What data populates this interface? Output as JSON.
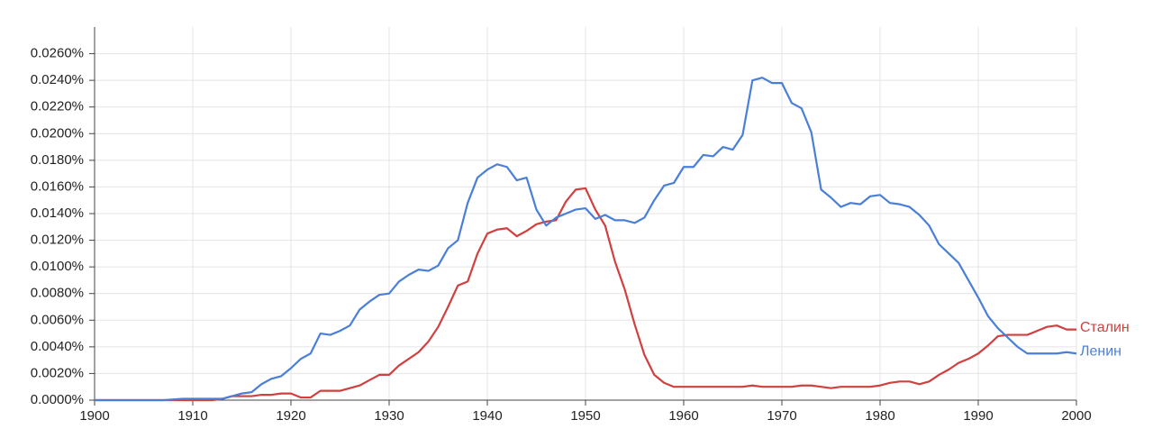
{
  "chart_data": {
    "type": "line",
    "x": [
      1900,
      1901,
      1902,
      1903,
      1904,
      1905,
      1906,
      1907,
      1908,
      1909,
      1910,
      1911,
      1912,
      1913,
      1914,
      1915,
      1916,
      1917,
      1918,
      1919,
      1920,
      1921,
      1922,
      1923,
      1924,
      1925,
      1926,
      1927,
      1928,
      1929,
      1930,
      1931,
      1932,
      1933,
      1934,
      1935,
      1936,
      1937,
      1938,
      1939,
      1940,
      1941,
      1942,
      1943,
      1944,
      1945,
      1946,
      1947,
      1948,
      1949,
      1950,
      1951,
      1952,
      1953,
      1954,
      1955,
      1956,
      1957,
      1958,
      1959,
      1960,
      1961,
      1962,
      1963,
      1964,
      1965,
      1966,
      1967,
      1968,
      1969,
      1970,
      1971,
      1972,
      1973,
      1974,
      1975,
      1976,
      1977,
      1978,
      1979,
      1980,
      1981,
      1982,
      1983,
      1984,
      1985,
      1986,
      1987,
      1988,
      1989,
      1990,
      1991,
      1992,
      1993,
      1994,
      1995,
      1996,
      1997,
      1998,
      1999,
      2000
    ],
    "series": [
      {
        "name": "Сталин",
        "color": "#d23f3f",
        "values": [
          0,
          0,
          0,
          0,
          0,
          0,
          0,
          0,
          0,
          0,
          0,
          0,
          0,
          0.0001,
          0.0003,
          0.0003,
          0.0003,
          0.0004,
          0.0004,
          0.0005,
          0.0005,
          0.0002,
          0.0002,
          0.0007,
          0.0007,
          0.0007,
          0.0009,
          0.0011,
          0.0015,
          0.0019,
          0.0019,
          0.0026,
          0.0031,
          0.0036,
          0.0044,
          0.0055,
          0.007,
          0.0086,
          0.0089,
          0.011,
          0.0125,
          0.0128,
          0.0129,
          0.0123,
          0.0127,
          0.0132,
          0.0134,
          0.0135,
          0.0149,
          0.0158,
          0.0159,
          0.0143,
          0.0131,
          0.0104,
          0.0083,
          0.0057,
          0.0034,
          0.0019,
          0.0013,
          0.001,
          0.001,
          0.001,
          0.001,
          0.001,
          0.001,
          0.001,
          0.001,
          0.0011,
          0.001,
          0.001,
          0.001,
          0.001,
          0.0011,
          0.0011,
          0.001,
          0.0009,
          0.001,
          0.001,
          0.001,
          0.001,
          0.0011,
          0.0013,
          0.0014,
          0.0014,
          0.0012,
          0.0014,
          0.0019,
          0.0023,
          0.0028,
          0.0031,
          0.0035,
          0.0041,
          0.0048,
          0.0049,
          0.0049,
          0.0049,
          0.0052,
          0.0055,
          0.0056,
          0.0053,
          0.0053
        ]
      },
      {
        "name": "Ленин",
        "color": "#4a7fd8",
        "values": [
          0,
          0,
          0,
          0,
          0,
          0,
          0,
          0,
          5e-05,
          0.0001,
          0.0001,
          0.0001,
          0.0001,
          0.0001,
          0.0003,
          0.0005,
          0.0006,
          0.0012,
          0.0016,
          0.0018,
          0.0024,
          0.0031,
          0.0035,
          0.005,
          0.0049,
          0.0052,
          0.0056,
          0.0068,
          0.0074,
          0.0079,
          0.008,
          0.0089,
          0.0094,
          0.0098,
          0.0097,
          0.0101,
          0.0114,
          0.012,
          0.0148,
          0.0167,
          0.0173,
          0.0177,
          0.0175,
          0.0165,
          0.0167,
          0.0143,
          0.0131,
          0.0137,
          0.014,
          0.0143,
          0.0144,
          0.0136,
          0.0139,
          0.0135,
          0.0135,
          0.0133,
          0.0137,
          0.015,
          0.0161,
          0.0163,
          0.0175,
          0.0175,
          0.0184,
          0.0183,
          0.019,
          0.0188,
          0.0199,
          0.024,
          0.0242,
          0.0238,
          0.0238,
          0.0223,
          0.0219,
          0.0201,
          0.0158,
          0.0152,
          0.0145,
          0.0148,
          0.0147,
          0.0153,
          0.0154,
          0.0148,
          0.0147,
          0.0145,
          0.0139,
          0.0131,
          0.0117,
          0.011,
          0.0103,
          0.009,
          0.0077,
          0.0063,
          0.0054,
          0.0047,
          0.004,
          0.0035,
          0.0035,
          0.0035,
          0.0035,
          0.0036,
          0.0035
        ]
      }
    ],
    "xlim": [
      1900,
      2000
    ],
    "xticks": [
      1900,
      1910,
      1920,
      1930,
      1940,
      1950,
      1960,
      1970,
      1980,
      1990,
      2000
    ],
    "ylim": [
      0,
      0.028
    ],
    "yticks": [
      {
        "value": 0,
        "label": "0.0000%"
      },
      {
        "value": 0.002,
        "label": "0.0020%"
      },
      {
        "value": 0.004,
        "label": "0.0040%"
      },
      {
        "value": 0.006,
        "label": "0.0060%"
      },
      {
        "value": 0.008,
        "label": "0.0080%"
      },
      {
        "value": 0.01,
        "label": "0.0100%"
      },
      {
        "value": 0.012,
        "label": "0.0120%"
      },
      {
        "value": 0.014,
        "label": "0.0140%"
      },
      {
        "value": 0.016,
        "label": "0.0160%"
      },
      {
        "value": 0.018,
        "label": "0.0180%"
      },
      {
        "value": 0.02,
        "label": "0.0200%"
      },
      {
        "value": 0.022,
        "label": "0.0220%"
      },
      {
        "value": 0.024,
        "label": "0.0240%"
      },
      {
        "value": 0.026,
        "label": "0.0260%"
      }
    ],
    "grid": true
  }
}
